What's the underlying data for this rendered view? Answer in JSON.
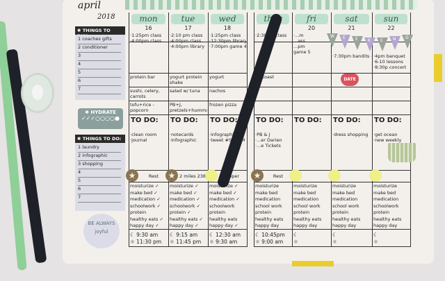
{
  "header": {
    "month": "april",
    "year": "2018"
  },
  "sidebar": {
    "buy_title": "✱ THINGS TO BUY:",
    "buy_items": [
      "1 coaches gifts",
      "2 conditioner",
      "3",
      "4",
      "5",
      "6",
      "7"
    ],
    "hydrate_title": "✱ HYDRATE",
    "hydrate_marks": "✓✓✓○○○○●",
    "todo_title": "✱ THINGS TO DO:",
    "todo_items": [
      "1 laundry",
      "2 infographic",
      "3 shopping",
      "4",
      "5",
      "6",
      "7"
    ],
    "sticker_text": "BE ALWAYS joyful"
  },
  "todo_label": "TO DO:",
  "weekend_banner": "WEEKEND",
  "date_sticker": "DATE",
  "days": [
    {
      "name": "mon",
      "date": "16",
      "schedule": [
        "·1:25pm class",
        "·4:00pm class"
      ],
      "meals": [
        "protein bar",
        "sushi, celery, carrots",
        "tofu+rice -popcorn"
      ],
      "todo": [
        "·clean room",
        "·journal"
      ],
      "workout": "Rest",
      "habits": [
        "moisturize ✓",
        "make bed ✓",
        "medication ✓",
        "schoolwork ✓",
        "protein",
        "healthy eats ✓",
        "happy day ✓"
      ],
      "sleep": [
        "☾ 9:30 am",
        "☼ 11:30 pm"
      ]
    },
    {
      "name": "tue",
      "date": "17",
      "schedule": [
        "·2:10 pm class",
        "·4:00pm class",
        "·4:00pm library"
      ],
      "meals": [
        "yogurt protein shake",
        "salad w/ tuna",
        "PB+J, pretzels+hummus"
      ],
      "todo": [
        "·notecards",
        "·infographic"
      ],
      "workout": "2 miles 238 cal",
      "habits": [
        "moisturize ✓",
        "make bed ✓",
        "medication ✓",
        "schoolwork ✓",
        "protein ✓",
        "healthy eats ✓",
        "happy day ✓"
      ],
      "sleep": [
        "☾ 9:15 am",
        "☼ 11:45 pm"
      ]
    },
    {
      "name": "wed",
      "date": "18",
      "schedule": [
        "·1:25pm class",
        "·12:30pm library",
        "·7:00pm game 4"
      ],
      "meals": [
        "yogurt",
        "nachos",
        "frozen pizza"
      ],
      "todo": [
        "·infographic",
        "·tweet #SPMSM"
      ],
      "workout": "upper",
      "habits": [
        "moisturize ✓",
        "make bed ✓",
        "medication ✓",
        "schoolwork",
        "protein",
        "healthy eats",
        "happy day ✓"
      ],
      "sleep": [
        "☾ 12:30 am",
        "☼ 9:30 am"
      ]
    },
    {
      "name": "thur",
      "date": "19",
      "schedule": [
        "·2:30pm class"
      ],
      "meals": [
        "PB toast",
        "",
        ""
      ],
      "todo": [
        "·PB & J",
        "·...er Darien",
        "·...e Tickets"
      ],
      "workout": "Rest",
      "habits": [
        "moisturize",
        "make bed",
        "medication",
        "school work",
        "protein",
        "healthy eats",
        "happy day"
      ],
      "sleep": [
        "☾ 10:45pm",
        "☼ 9:00 am"
      ]
    },
    {
      "name": "fri",
      "date": "20",
      "schedule": [
        "·...m",
        "...ass",
        "...pm",
        "game 5"
      ],
      "meals": [
        "",
        "",
        ""
      ],
      "todo": [],
      "workout": "",
      "habits": [
        "moisturize",
        "make bed",
        "medication",
        "school work",
        "protein",
        "healthy eats",
        "happy day"
      ],
      "sleep": [
        "☾",
        "☼"
      ]
    },
    {
      "name": "sat",
      "date": "21",
      "schedule": [
        "·7:30pm bandits game"
      ],
      "meals": [
        "",
        "",
        ""
      ],
      "todo": [
        "·dress shopping"
      ],
      "workout": "",
      "habits": [
        "moisturize",
        "make bed",
        "medication",
        "school work",
        "protein",
        "healthy eats",
        "happy day"
      ],
      "sleep": [
        "☾",
        "☼"
      ]
    },
    {
      "name": "sun",
      "date": "22",
      "schedule": [
        "·4pm banquet",
        "·6-10 lessons",
        "·8:30p concert"
      ],
      "meals": [
        "",
        "",
        ""
      ],
      "todo": [
        "·get ocean",
        "·new weekly"
      ],
      "workout": "",
      "habits": [
        "moisturize",
        "make bed",
        "medication",
        "schoolwork",
        "protein",
        "healthy eats",
        "happy day"
      ],
      "sleep": [
        "☾",
        "☼"
      ]
    }
  ],
  "colors": {
    "accent_green": "#bfe0cf",
    "star_brown": "#8a7450",
    "pennant_grey": "#9aa39a",
    "pennant_purple": "#b3a6cf",
    "highlight_yellow": "#eef08a",
    "pen_black": "#1e2128",
    "marker_green": "#8fcf98",
    "tab_yellow": "#e9cd2c"
  }
}
